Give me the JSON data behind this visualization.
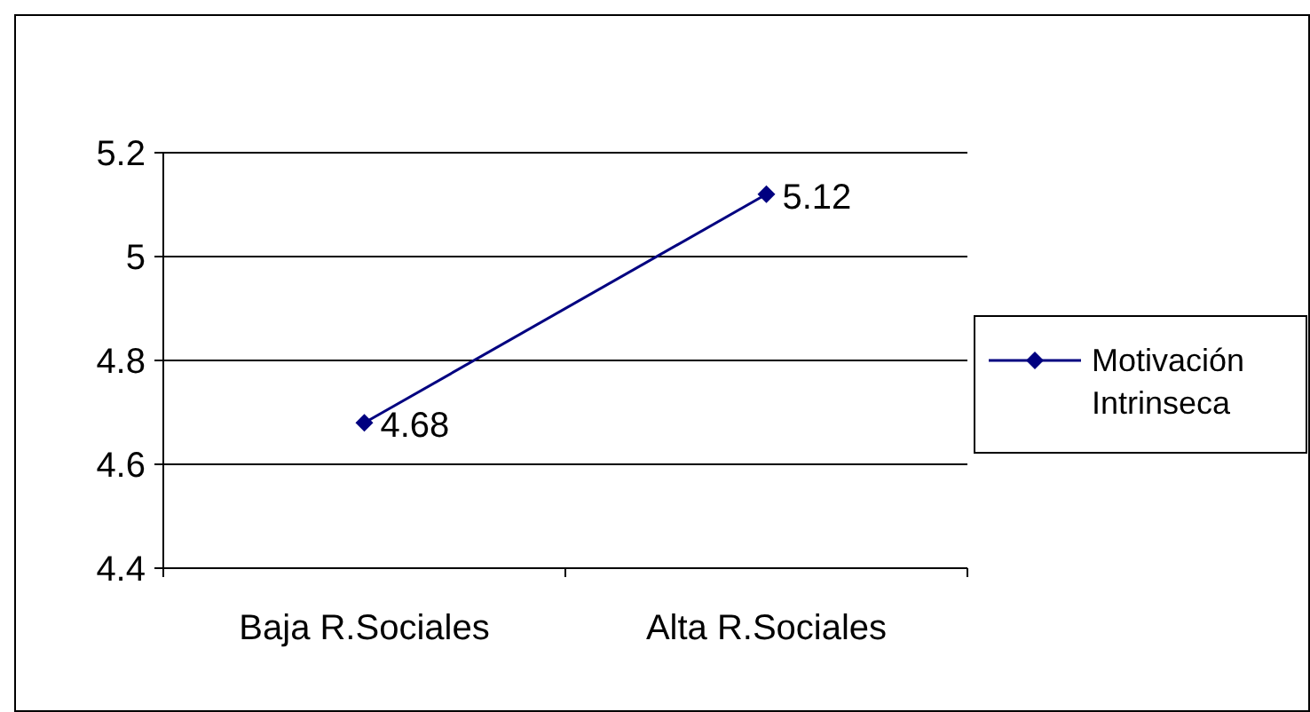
{
  "chart_data": {
    "type": "line",
    "categories": [
      "Baja R.Sociales",
      "Alta R.Sociales"
    ],
    "series": [
      {
        "name": "Motivación Intrinseca",
        "color": "#000080",
        "values": [
          4.68,
          5.12
        ]
      }
    ],
    "ylim": [
      4.4,
      5.2
    ],
    "yticks": [
      4.4,
      4.6,
      4.8,
      {
        "value": 5,
        "label": "5"
      },
      5.2
    ],
    "grid": "y",
    "legend": "right",
    "marker": "diamond",
    "data_labels": true
  }
}
